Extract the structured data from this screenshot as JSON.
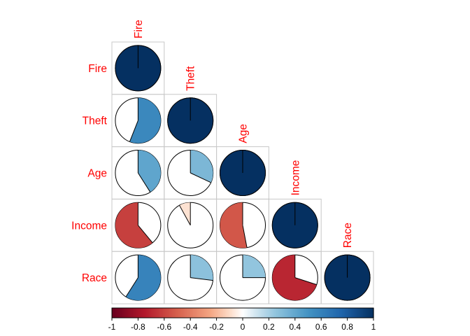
{
  "chart_data": {
    "type": "heatmap",
    "style": "corrplot-pie-lower-triangle",
    "title": "",
    "variables": [
      "Fire",
      "Theft",
      "Age",
      "Income",
      "Race"
    ],
    "matrix": [
      [
        1.0,
        0.56,
        0.41,
        -0.61,
        0.59
      ],
      [
        0.56,
        1.0,
        0.32,
        -0.08,
        0.27
      ],
      [
        0.41,
        0.32,
        1.0,
        -0.53,
        0.25
      ],
      [
        -0.61,
        -0.08,
        -0.53,
        1.0,
        -0.7
      ],
      [
        0.59,
        0.27,
        0.25,
        -0.7,
        1.0
      ]
    ],
    "colorbar": {
      "range": [
        -1,
        1
      ],
      "ticks": [
        "-1",
        "-0.8",
        "-0.6",
        "-0.4",
        "-0.2",
        "0",
        "0.2",
        "0.4",
        "0.6",
        "0.8",
        "1"
      ],
      "placement": "bottom"
    },
    "label_color": "#ff0000",
    "grid": true
  }
}
